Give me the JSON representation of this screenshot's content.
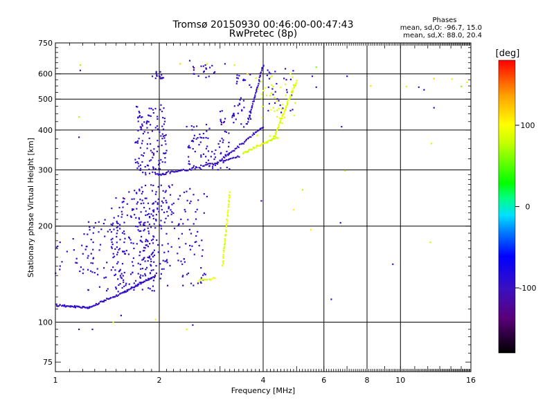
{
  "chart_data": {
    "type": "scatter",
    "title": "Tromsø 20150930 00:46:00-00:47:43",
    "subtitle": "RwPretec (8p)",
    "xlabel": "Frequency [MHz]",
    "ylabel": "Stationary phase Virtual Height [km]",
    "x_scale": "log",
    "y_scale": "log",
    "xlim": [
      1,
      16
    ],
    "ylim": [
      70,
      750
    ],
    "x_ticks": [
      "1",
      "2",
      "4",
      "6",
      "8",
      "10",
      "16"
    ],
    "x_tick_values": [
      1,
      2,
      4,
      6,
      8,
      10,
      16
    ],
    "x_grid_values": [
      1,
      2,
      4,
      6,
      8,
      10,
      16
    ],
    "y_ticks": [
      "75",
      "100",
      "200",
      "300",
      "400",
      "500",
      "600",
      "750"
    ],
    "y_tick_values": [
      75,
      100,
      200,
      300,
      400,
      500,
      600,
      750
    ],
    "y_grid_values": [
      100,
      200,
      300,
      400,
      500,
      600
    ],
    "grid": true,
    "phase_stats": {
      "title": "Phases",
      "line1": "mean, sd,O: -96.7, 15.0",
      "line2": "mean, sd,X:  88.0, 20.4"
    },
    "colorbar": {
      "label": "[deg]",
      "min": -180,
      "max": 180,
      "ticks": [
        "100",
        "0",
        "-100"
      ],
      "tick_values": [
        100,
        0,
        -100
      ],
      "palette": "rainbow: black (-180) → purple → blue (-100) → cyan → green (0) → yellow (100) → orange → red (180)"
    },
    "series": [
      {
        "name": "",
        "mode": "O",
        "phase_mean": -96.7,
        "phase_sd": 15.0,
        "traces": [
          {
            "f_from": 1.0,
            "f_to": 1.25,
            "h_from": 113,
            "h_to": 111,
            "n": 40
          },
          {
            "f_from": 1.25,
            "f_to": 1.6,
            "h_from": 111,
            "h_to": 125,
            "n": 40
          },
          {
            "f_from": 1.6,
            "f_to": 1.95,
            "h_from": 125,
            "h_to": 140,
            "n": 40
          },
          {
            "f_from": 1.95,
            "f_to": 2.4,
            "h_from": 290,
            "h_to": 300,
            "n": 30
          },
          {
            "f_from": 2.4,
            "f_to": 3.4,
            "h_from": 300,
            "h_to": 330,
            "n": 40
          },
          {
            "f_from": 3.0,
            "f_to": 4.0,
            "h_from": 320,
            "h_to": 410,
            "n": 40
          },
          {
            "f_from": 3.6,
            "f_to": 4.0,
            "h_from": 420,
            "h_to": 640,
            "n": 40
          }
        ],
        "clouds": [
          {
            "f_min": 1.0,
            "f_max": 1.3,
            "h_min": 140,
            "h_max": 185,
            "n": 30
          },
          {
            "f_min": 1.2,
            "f_max": 1.6,
            "h_min": 120,
            "h_max": 210,
            "n": 60
          },
          {
            "f_min": 1.45,
            "f_max": 1.95,
            "h_min": 125,
            "h_max": 260,
            "n": 160
          },
          {
            "f_min": 1.75,
            "f_max": 2.1,
            "h_min": 135,
            "h_max": 270,
            "n": 120
          },
          {
            "f_min": 1.7,
            "f_max": 2.1,
            "h_min": 290,
            "h_max": 480,
            "n": 130
          },
          {
            "f_min": 2.1,
            "f_max": 2.75,
            "h_min": 130,
            "h_max": 270,
            "n": 90
          },
          {
            "f_min": 2.4,
            "f_max": 3.2,
            "h_min": 300,
            "h_max": 420,
            "n": 80
          },
          {
            "f_min": 1.9,
            "f_max": 2.1,
            "h_min": 580,
            "h_max": 610,
            "n": 15
          },
          {
            "f_min": 2.5,
            "f_max": 2.9,
            "h_min": 580,
            "h_max": 640,
            "n": 20
          },
          {
            "f_min": 3.3,
            "f_max": 3.7,
            "h_min": 400,
            "h_max": 600,
            "n": 30
          },
          {
            "f_min": 4.1,
            "f_max": 4.9,
            "h_min": 450,
            "h_max": 630,
            "n": 30
          },
          {
            "f_min": 3.0,
            "f_max": 3.3,
            "h_min": 420,
            "h_max": 460,
            "n": 15
          }
        ]
      },
      {
        "name": "",
        "mode": "X",
        "phase_mean": 88.0,
        "phase_sd": 20.4,
        "traces": [
          {
            "f_from": 2.6,
            "f_to": 2.9,
            "h_from": 135,
            "h_to": 137,
            "n": 12
          },
          {
            "f_from": 3.05,
            "f_to": 3.2,
            "h_from": 150,
            "h_to": 255,
            "n": 40
          },
          {
            "f_from": 3.5,
            "f_to": 4.4,
            "h_from": 340,
            "h_to": 380,
            "n": 40
          },
          {
            "f_from": 4.3,
            "f_to": 5.0,
            "h_from": 380,
            "h_to": 570,
            "n": 50
          }
        ],
        "clouds": [
          {
            "f_min": 3.8,
            "f_max": 5.0,
            "h_min": 380,
            "h_max": 600,
            "n": 40
          }
        ]
      },
      {
        "name": "",
        "mode": "scattered",
        "points": [
          [
            1.18,
            640
          ],
          [
            1.18,
            615
          ],
          [
            1.17,
            440
          ],
          [
            1.17,
            380
          ],
          [
            1.17,
            95
          ],
          [
            1.28,
            95
          ],
          [
            1.35,
            175
          ],
          [
            1.47,
            100
          ],
          [
            1.55,
            105
          ],
          [
            1.95,
            102
          ],
          [
            2.4,
            95
          ],
          [
            2.5,
            98
          ],
          [
            2.45,
            660
          ],
          [
            2.3,
            645
          ],
          [
            2.75,
            645
          ],
          [
            3.1,
            645
          ],
          [
            3.3,
            640
          ],
          [
            3.6,
            600
          ],
          [
            5.2,
            260
          ],
          [
            4.9,
            225
          ],
          [
            5.5,
            195
          ],
          [
            6.3,
            118
          ],
          [
            6.75,
            410
          ],
          [
            6.9,
            298
          ],
          [
            7.0,
            590
          ],
          [
            6.7,
            205
          ],
          [
            8.2,
            550
          ],
          [
            9.5,
            152
          ],
          [
            10.4,
            548
          ],
          [
            11.3,
            545
          ],
          [
            11.7,
            535
          ],
          [
            12.3,
            363
          ],
          [
            12.5,
            470
          ],
          [
            12.2,
            178
          ],
          [
            12.5,
            580
          ],
          [
            14.1,
            578
          ],
          [
            15.0,
            548
          ],
          [
            15.6,
            565
          ],
          [
            5.7,
            545
          ],
          [
            5.55,
            590
          ],
          [
            5.7,
            630
          ],
          [
            3.95,
            240
          ]
        ]
      }
    ]
  }
}
